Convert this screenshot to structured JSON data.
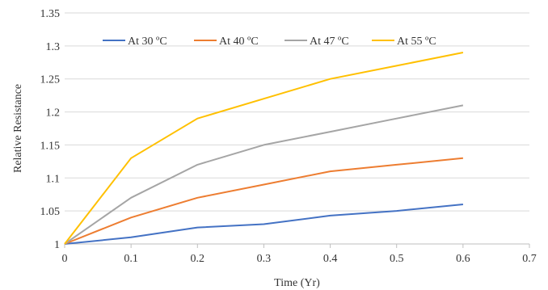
{
  "chart_data": {
    "type": "line",
    "title": "",
    "xlabel": "Time (Yr)",
    "ylabel": "Relative Resistance",
    "xlim": [
      0,
      0.7
    ],
    "ylim": [
      1,
      1.35
    ],
    "x_ticks": [
      0,
      0.1,
      0.2,
      0.3,
      0.4,
      0.5,
      0.6,
      0.7
    ],
    "x_tick_labels": [
      "0",
      "0.1",
      "0.2",
      "0.3",
      "0.4",
      "0.5",
      "0.6",
      "0.7"
    ],
    "y_ticks": [
      1,
      1.05,
      1.1,
      1.15,
      1.2,
      1.25,
      1.3,
      1.35
    ],
    "y_tick_labels": [
      "1",
      "1.05",
      "1.1",
      "1.15",
      "1.2",
      "1.25",
      "1.3",
      "1.35"
    ],
    "grid": "horizontal",
    "legend_position": "top",
    "x": [
      0,
      0.1,
      0.2,
      0.3,
      0.4,
      0.5,
      0.6
    ],
    "series": [
      {
        "name": "At 30 ºC",
        "color": "#4472c4",
        "values": [
          1.0,
          1.01,
          1.025,
          1.03,
          1.043,
          1.05,
          1.06
        ]
      },
      {
        "name": "At 40 ºC",
        "color": "#ed7d31",
        "values": [
          1.0,
          1.04,
          1.07,
          1.09,
          1.11,
          1.12,
          1.13
        ]
      },
      {
        "name": "At 47 ºC",
        "color": "#a5a5a5",
        "values": [
          1.0,
          1.07,
          1.12,
          1.15,
          1.17,
          1.19,
          1.21
        ]
      },
      {
        "name": "At 55 ºC",
        "color": "#ffc000",
        "values": [
          1.0,
          1.13,
          1.19,
          1.22,
          1.25,
          1.27,
          1.29
        ]
      }
    ]
  }
}
